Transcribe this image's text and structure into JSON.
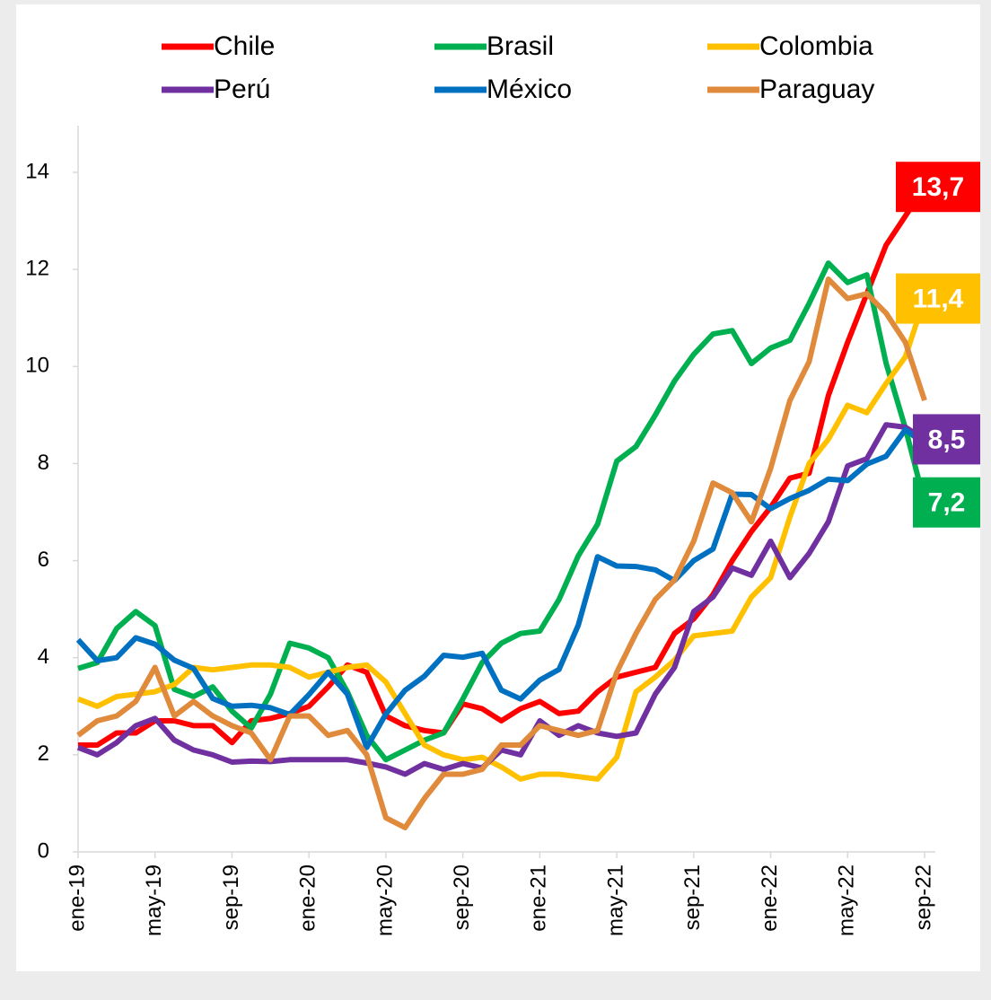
{
  "chart_data": {
    "type": "line",
    "categories": [
      "ene-19",
      null,
      null,
      null,
      "may-19",
      null,
      null,
      null,
      "sep-19",
      null,
      null,
      null,
      "ene-20",
      null,
      null,
      null,
      "may-20",
      null,
      null,
      null,
      "sep-20",
      null,
      null,
      null,
      "ene-21",
      null,
      null,
      null,
      "may-21",
      null,
      null,
      null,
      "sep-21",
      null,
      null,
      null,
      "ene-22",
      null,
      null,
      null,
      "may-22",
      null,
      null,
      null,
      "sep-22"
    ],
    "ylim": [
      0,
      14
    ],
    "yticks": [
      0,
      2,
      4,
      6,
      8,
      10,
      12,
      14
    ],
    "series": [
      {
        "name": "Chile",
        "color": "#ff0000",
        "values": [
          2.2,
          2.2,
          2.45,
          2.45,
          2.7,
          2.7,
          2.6,
          2.6,
          2.25,
          2.7,
          2.75,
          2.85,
          3.0,
          3.4,
          3.85,
          3.7,
          2.8,
          2.6,
          2.5,
          2.45,
          3.05,
          2.95,
          2.7,
          2.95,
          3.1,
          2.85,
          2.9,
          3.3,
          3.6,
          3.7,
          3.8,
          4.5,
          4.8,
          5.3,
          6.0,
          6.6,
          7.1,
          7.7,
          7.8,
          9.4,
          10.5,
          11.5,
          12.5,
          13.1,
          13.7
        ],
        "value_labels": [
          null,
          null,
          null,
          null,
          null,
          null,
          null,
          null,
          null,
          null,
          null,
          null,
          null,
          null,
          null,
          null,
          null,
          null,
          null,
          null,
          null,
          null,
          null,
          null,
          null,
          null,
          null,
          null,
          null,
          null,
          null,
          null,
          null,
          null,
          null,
          null,
          null,
          null,
          null,
          null,
          null,
          null,
          null,
          null,
          "13,7"
        ]
      },
      {
        "name": "Brasil",
        "color": "#00b050",
        "values": [
          3.78,
          3.9,
          4.6,
          4.95,
          4.66,
          3.35,
          3.2,
          3.4,
          2.9,
          2.55,
          3.25,
          4.3,
          4.2,
          4.0,
          3.3,
          2.4,
          1.9,
          2.1,
          2.3,
          2.45,
          3.15,
          3.9,
          4.3,
          4.5,
          4.55,
          5.2,
          6.1,
          6.75,
          8.05,
          8.35,
          9.0,
          9.7,
          10.25,
          10.67,
          10.74,
          10.06,
          10.38,
          10.54,
          11.3,
          12.13,
          11.73,
          11.89,
          10.07,
          8.73,
          7.2
        ],
        "value_labels": [
          null,
          null,
          null,
          null,
          null,
          null,
          null,
          null,
          null,
          null,
          null,
          null,
          null,
          null,
          null,
          null,
          null,
          null,
          null,
          null,
          null,
          null,
          null,
          null,
          null,
          null,
          null,
          null,
          null,
          null,
          null,
          null,
          null,
          null,
          null,
          null,
          null,
          null,
          null,
          null,
          null,
          null,
          null,
          null,
          "7,2"
        ]
      },
      {
        "name": "Colombia",
        "color": "#ffc000",
        "values": [
          3.15,
          3.0,
          3.2,
          3.25,
          3.3,
          3.45,
          3.8,
          3.75,
          3.8,
          3.85,
          3.85,
          3.8,
          3.6,
          3.7,
          3.8,
          3.85,
          3.5,
          2.85,
          2.2,
          2.0,
          1.9,
          1.95,
          1.75,
          1.5,
          1.6,
          1.6,
          1.55,
          1.5,
          1.95,
          3.3,
          3.6,
          3.95,
          4.45,
          4.5,
          4.55,
          5.25,
          5.65,
          6.9,
          8.0,
          8.5,
          9.2,
          9.05,
          9.65,
          10.2,
          11.4
        ],
        "value_labels": [
          null,
          null,
          null,
          null,
          null,
          null,
          null,
          null,
          null,
          null,
          null,
          null,
          null,
          null,
          null,
          null,
          null,
          null,
          null,
          null,
          null,
          null,
          null,
          null,
          null,
          null,
          null,
          null,
          null,
          null,
          null,
          null,
          null,
          null,
          null,
          null,
          null,
          null,
          null,
          null,
          null,
          null,
          null,
          null,
          "11,4"
        ]
      },
      {
        "name": "Perú",
        "color": "#7030a0",
        "values": [
          2.15,
          2.0,
          2.25,
          2.6,
          2.75,
          2.3,
          2.1,
          2.0,
          1.85,
          1.87,
          1.86,
          1.9,
          1.9,
          1.9,
          1.9,
          1.83,
          1.75,
          1.6,
          1.82,
          1.7,
          1.82,
          1.73,
          2.1,
          2.0,
          2.7,
          2.4,
          2.6,
          2.45,
          2.38,
          2.45,
          3.25,
          3.8,
          4.95,
          5.25,
          5.85,
          5.7,
          6.4,
          5.65,
          6.15,
          6.8,
          7.95,
          8.1,
          8.8,
          8.75,
          8.5
        ],
        "value_labels": [
          null,
          null,
          null,
          null,
          null,
          null,
          null,
          null,
          null,
          null,
          null,
          null,
          null,
          null,
          null,
          null,
          null,
          null,
          null,
          null,
          null,
          null,
          null,
          null,
          null,
          null,
          null,
          null,
          null,
          null,
          null,
          null,
          null,
          null,
          null,
          null,
          null,
          null,
          null,
          null,
          null,
          null,
          null,
          null,
          "8,5"
        ]
      },
      {
        "name": "México",
        "color": "#0070c0",
        "values": [
          4.37,
          3.94,
          4.0,
          4.41,
          4.28,
          3.95,
          3.78,
          3.16,
          3.0,
          3.02,
          2.97,
          2.83,
          3.24,
          3.7,
          3.25,
          2.15,
          2.84,
          3.33,
          3.62,
          4.05,
          4.01,
          4.09,
          3.33,
          3.15,
          3.54,
          3.76,
          4.67,
          6.08,
          5.89,
          5.88,
          5.81,
          5.59,
          6.0,
          6.24,
          7.37,
          7.36,
          7.07,
          7.28,
          7.45,
          7.68,
          7.65,
          7.99,
          8.15,
          8.7,
          8.4
        ]
      },
      {
        "name": "Paraguay",
        "color": "#e08a3c",
        "values": [
          2.4,
          2.7,
          2.8,
          3.1,
          3.8,
          2.8,
          3.1,
          2.8,
          2.6,
          2.45,
          1.9,
          2.8,
          2.8,
          2.4,
          2.5,
          2.0,
          0.7,
          0.5,
          1.1,
          1.6,
          1.6,
          1.7,
          2.2,
          2.2,
          2.6,
          2.5,
          2.4,
          2.5,
          3.7,
          4.5,
          5.2,
          5.6,
          6.4,
          7.6,
          7.4,
          6.8,
          7.9,
          9.3,
          10.1,
          11.8,
          11.4,
          11.5,
          11.1,
          10.5,
          9.3
        ]
      }
    ]
  }
}
